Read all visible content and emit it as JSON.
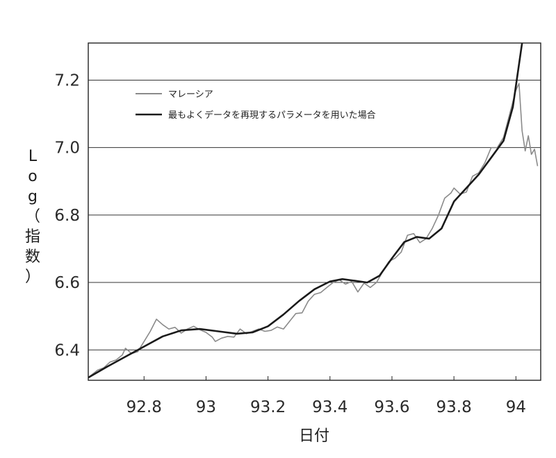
{
  "chart_data": {
    "type": "line",
    "title": "",
    "xlabel": "日付",
    "ylabel": "Log（指数）",
    "xlim": [
      92.62,
      94.08
    ],
    "ylim": [
      6.31,
      7.31
    ],
    "x_ticks": [
      "92.8",
      "93",
      "93.2",
      "93.4",
      "93.6",
      "93.8",
      "94"
    ],
    "y_ticks": [
      "6.4",
      "6.6",
      "6.8",
      "7.0",
      "7.2"
    ],
    "grid": "horizontal",
    "legend_position": "top-left",
    "series": [
      {
        "name": "マレーシア",
        "color": "#8a8a8a",
        "points": [
          [
            92.62,
            6.318
          ],
          [
            92.65,
            6.34
          ],
          [
            92.67,
            6.347
          ],
          [
            92.69,
            6.364
          ],
          [
            92.71,
            6.37
          ],
          [
            92.73,
            6.385
          ],
          [
            92.74,
            6.405
          ],
          [
            92.76,
            6.389
          ],
          [
            92.78,
            6.395
          ],
          [
            92.8,
            6.425
          ],
          [
            92.82,
            6.455
          ],
          [
            92.84,
            6.491
          ],
          [
            92.86,
            6.475
          ],
          [
            92.88,
            6.462
          ],
          [
            92.9,
            6.467
          ],
          [
            92.92,
            6.45
          ],
          [
            92.94,
            6.462
          ],
          [
            92.96,
            6.47
          ],
          [
            92.98,
            6.46
          ],
          [
            93.0,
            6.452
          ],
          [
            93.02,
            6.438
          ],
          [
            93.03,
            6.425
          ],
          [
            93.05,
            6.435
          ],
          [
            93.07,
            6.44
          ],
          [
            93.09,
            6.438
          ],
          [
            93.11,
            6.462
          ],
          [
            93.13,
            6.448
          ],
          [
            93.15,
            6.455
          ],
          [
            93.17,
            6.462
          ],
          [
            93.19,
            6.455
          ],
          [
            93.21,
            6.458
          ],
          [
            93.23,
            6.468
          ],
          [
            93.25,
            6.462
          ],
          [
            93.27,
            6.485
          ],
          [
            93.29,
            6.508
          ],
          [
            93.31,
            6.51
          ],
          [
            93.33,
            6.545
          ],
          [
            93.35,
            6.565
          ],
          [
            93.37,
            6.57
          ],
          [
            93.39,
            6.585
          ],
          [
            93.41,
            6.6
          ],
          [
            93.43,
            6.608
          ],
          [
            93.45,
            6.595
          ],
          [
            93.47,
            6.603
          ],
          [
            93.49,
            6.572
          ],
          [
            93.51,
            6.598
          ],
          [
            93.53,
            6.585
          ],
          [
            93.55,
            6.6
          ],
          [
            93.57,
            6.632
          ],
          [
            93.59,
            6.662
          ],
          [
            93.61,
            6.672
          ],
          [
            93.63,
            6.69
          ],
          [
            93.65,
            6.74
          ],
          [
            93.67,
            6.745
          ],
          [
            93.69,
            6.718
          ],
          [
            93.71,
            6.73
          ],
          [
            93.73,
            6.76
          ],
          [
            93.75,
            6.8
          ],
          [
            93.77,
            6.85
          ],
          [
            93.79,
            6.865
          ],
          [
            93.8,
            6.88
          ],
          [
            93.82,
            6.862
          ],
          [
            93.84,
            6.868
          ],
          [
            93.86,
            6.915
          ],
          [
            93.88,
            6.925
          ],
          [
            93.9,
            6.955
          ],
          [
            93.92,
            7.0
          ],
          [
            93.94,
            7.0
          ],
          [
            93.96,
            7.03
          ],
          [
            93.98,
            7.1
          ],
          [
            94.0,
            7.17
          ],
          [
            94.01,
            7.19
          ],
          [
            94.02,
            7.05
          ],
          [
            94.03,
            6.99
          ],
          [
            94.04,
            7.035
          ],
          [
            94.05,
            6.98
          ],
          [
            94.06,
            6.995
          ],
          [
            94.07,
            6.945
          ]
        ]
      },
      {
        "name": "最もよくデータを再現するパラメータを用いた場合",
        "color": "#1a1a1a",
        "points": [
          [
            92.62,
            6.318
          ],
          [
            92.68,
            6.35
          ],
          [
            92.74,
            6.38
          ],
          [
            92.8,
            6.41
          ],
          [
            92.86,
            6.44
          ],
          [
            92.92,
            6.458
          ],
          [
            92.98,
            6.462
          ],
          [
            93.04,
            6.455
          ],
          [
            93.1,
            6.448
          ],
          [
            93.15,
            6.452
          ],
          [
            93.2,
            6.47
          ],
          [
            93.25,
            6.505
          ],
          [
            93.3,
            6.545
          ],
          [
            93.35,
            6.58
          ],
          [
            93.4,
            6.603
          ],
          [
            93.44,
            6.61
          ],
          [
            93.48,
            6.605
          ],
          [
            93.52,
            6.6
          ],
          [
            93.56,
            6.62
          ],
          [
            93.6,
            6.672
          ],
          [
            93.64,
            6.72
          ],
          [
            93.68,
            6.735
          ],
          [
            93.72,
            6.73
          ],
          [
            93.76,
            6.76
          ],
          [
            93.8,
            6.84
          ],
          [
            93.84,
            6.88
          ],
          [
            93.88,
            6.92
          ],
          [
            93.92,
            6.97
          ],
          [
            93.96,
            7.02
          ],
          [
            93.99,
            7.12
          ],
          [
            94.02,
            7.31
          ]
        ]
      }
    ]
  }
}
